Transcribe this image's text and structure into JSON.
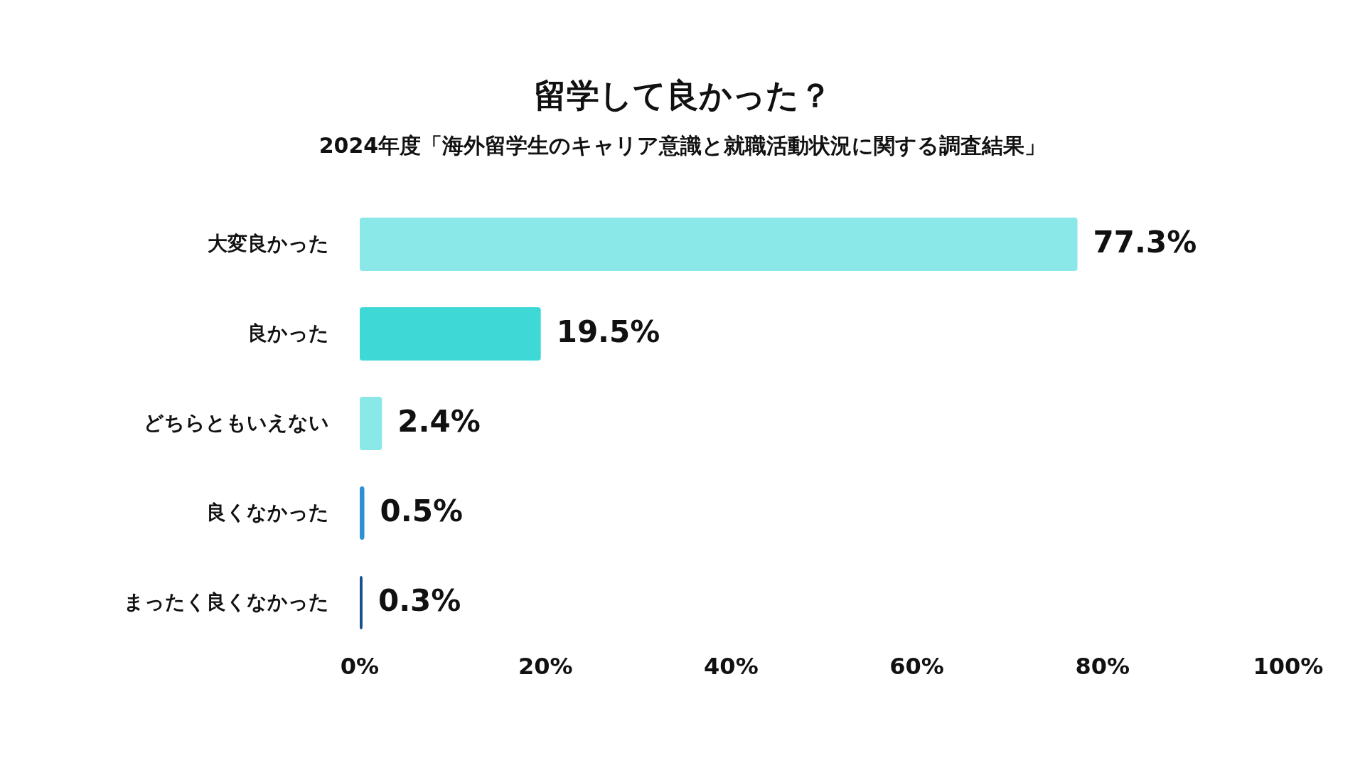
{
  "chart_data": {
    "type": "bar",
    "orientation": "horizontal",
    "title": "留学して良かった？",
    "subtitle": "2024年度「海外留学生のキャリア意識と就職活動状況に関する調査結果」",
    "categories": [
      "大変良かった",
      "良かった",
      "どちらともいえない",
      "良くなかった",
      "まったく良くなかった"
    ],
    "values": [
      77.3,
      19.5,
      2.4,
      0.5,
      0.3
    ],
    "value_labels": [
      "77.3%",
      "19.5%",
      "2.4%",
      "0.5%",
      "0.3%"
    ],
    "colors": [
      "#8ae8e8",
      "#3ed9d6",
      "#8ae8e8",
      "#2e90d4",
      "#165187"
    ],
    "xlim": [
      0,
      100
    ],
    "xticks": [
      {
        "value": 0,
        "label": "0%"
      },
      {
        "value": 20,
        "label": "20%"
      },
      {
        "value": 40,
        "label": "40%"
      },
      {
        "value": 60,
        "label": "60%"
      },
      {
        "value": 80,
        "label": "80%"
      },
      {
        "value": 100,
        "label": "100%"
      }
    ]
  }
}
